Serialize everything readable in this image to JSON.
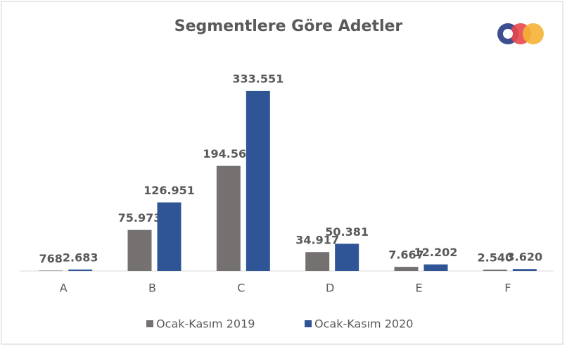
{
  "chart_data": {
    "type": "bar",
    "title": "Segmentlere Göre Adetler",
    "categories": [
      "A",
      "B",
      "C",
      "D",
      "E",
      "F"
    ],
    "series": [
      {
        "name": "Ocak-Kasım 2019",
        "color": "#767171",
        "values": [
          768,
          75973,
          194562,
          34917,
          7667,
          2540
        ],
        "value_labels": [
          "768",
          "75.973",
          "194.562",
          "34.917",
          "7.667",
          "2.540"
        ]
      },
      {
        "name": "Ocak-Kasım 2020",
        "color": "#2f5597",
        "values": [
          2683,
          126951,
          333551,
          50381,
          12202,
          3620
        ],
        "value_labels": [
          "2.683",
          "126.951",
          "333.551",
          "50.381",
          "12.202",
          "3.620"
        ]
      }
    ],
    "legend": "bottom"
  }
}
